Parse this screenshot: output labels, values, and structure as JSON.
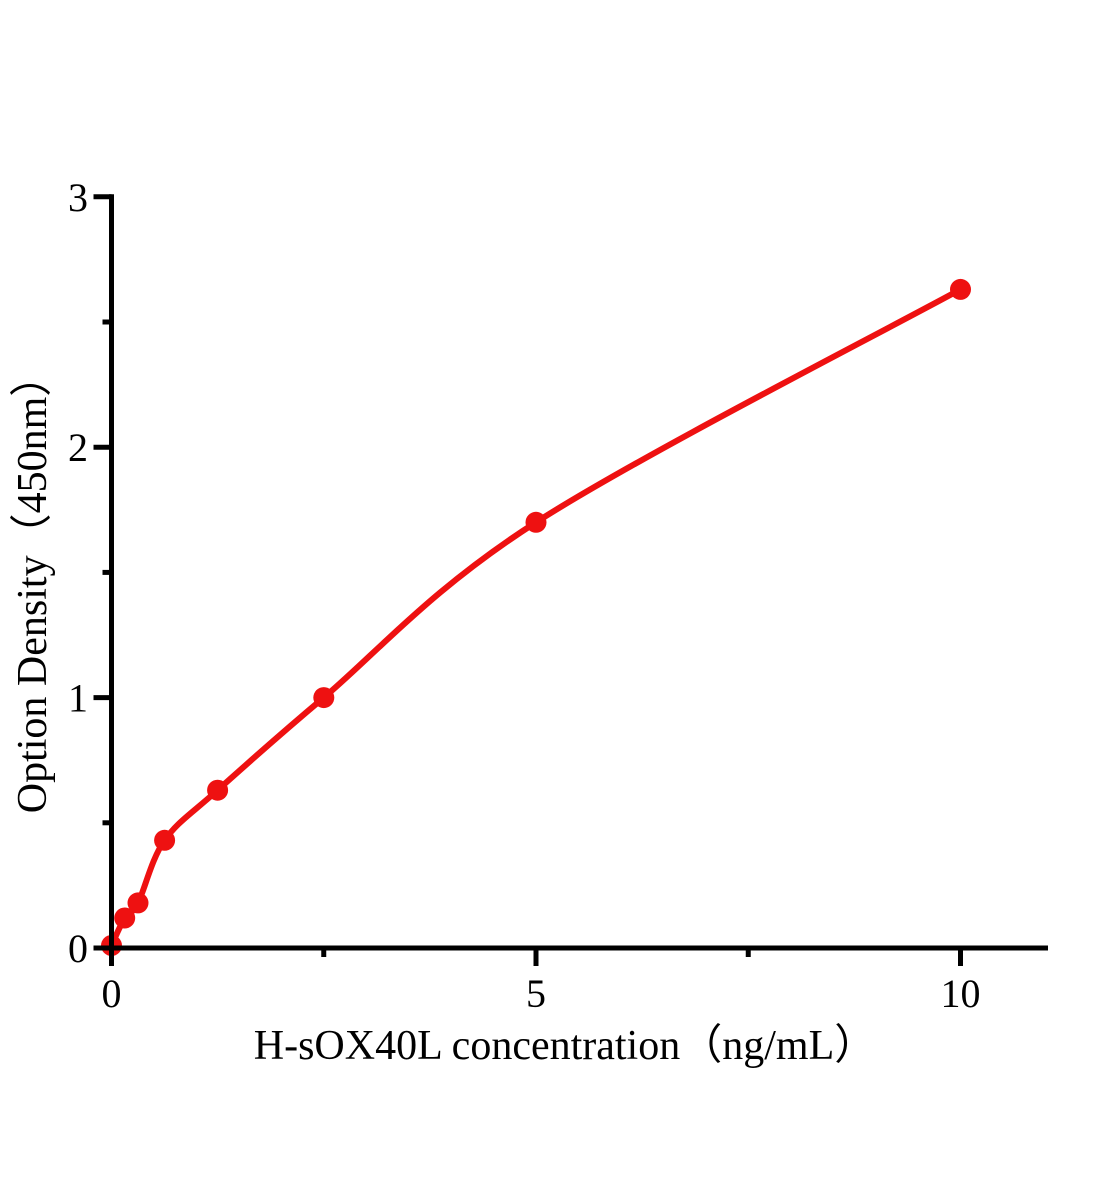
{
  "chart_data": {
    "type": "scatter",
    "title": "",
    "xlabel": "H-sOX40L concentration（ng/mL）",
    "ylabel": "Option Density（450nm）",
    "points": [
      {
        "x": 0,
        "y": 0.01
      },
      {
        "x": 0.156,
        "y": 0.12
      },
      {
        "x": 0.3125,
        "y": 0.18
      },
      {
        "x": 0.625,
        "y": 0.43
      },
      {
        "x": 1.25,
        "y": 0.63
      },
      {
        "x": 2.5,
        "y": 1.0
      },
      {
        "x": 5,
        "y": 1.7
      },
      {
        "x": 10,
        "y": 2.63
      }
    ],
    "curve_style": "smooth fit line through points",
    "xlim": [
      0,
      11
    ],
    "ylim": [
      0,
      3
    ],
    "xticks_major": [
      0,
      5,
      10
    ],
    "xtick_labels": [
      "0",
      "5",
      "10"
    ],
    "xticks_minor": [
      2.5,
      7.5
    ],
    "yticks_major": [
      0,
      1,
      2,
      3
    ],
    "ytick_labels": [
      "0",
      "1",
      "2",
      "3"
    ],
    "yticks_minor": [
      0.5,
      1.5,
      2.5
    ],
    "grid": "off",
    "legend": "none",
    "colors": {
      "curve": "#ee1111",
      "marker": "#ee1111",
      "axis": "#000000",
      "background": "#ffffff"
    },
    "marker": {
      "shape": "circle",
      "radius": 10.5
    },
    "curve_width": 6
  }
}
